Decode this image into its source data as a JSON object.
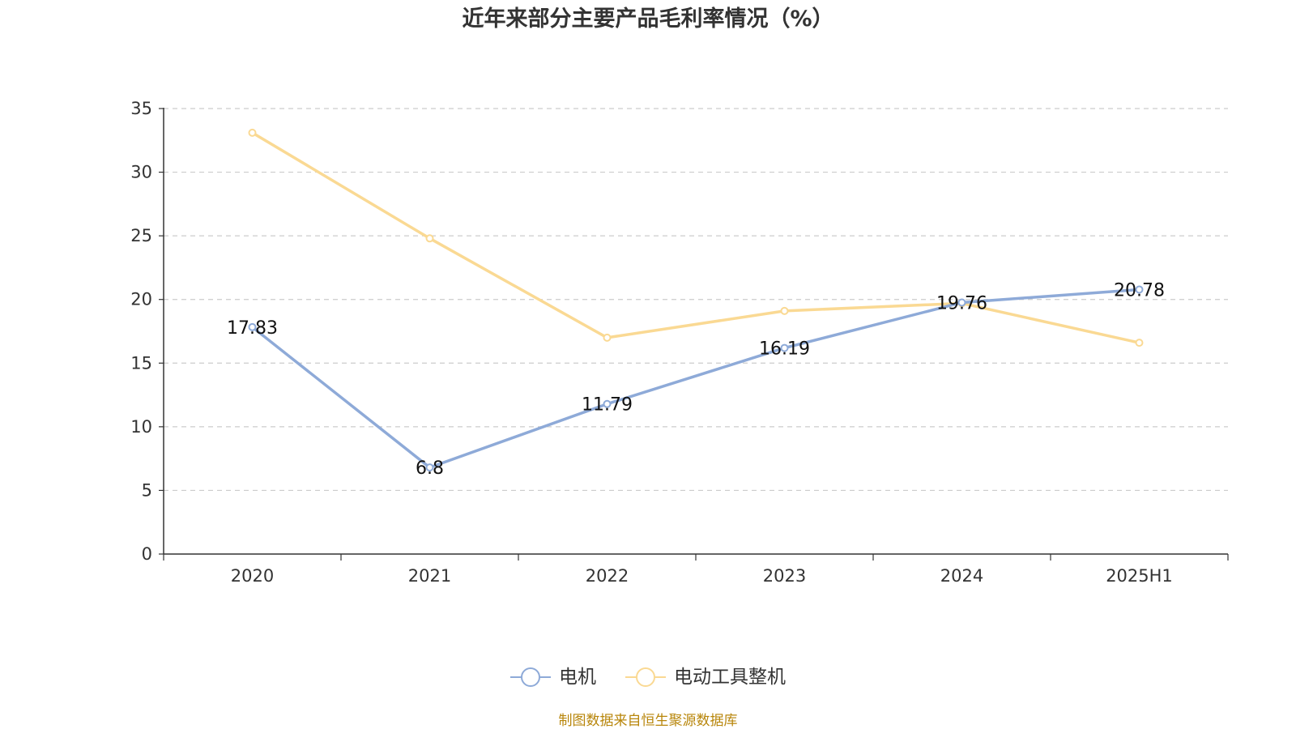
{
  "title": "近年来部分主要产品毛利率情况（%）",
  "source_note": "制图数据来自恒生聚源数据库",
  "colors": {
    "series_motor": "#8eaad8",
    "series_tool": "#fad993",
    "grid": "#cccccc",
    "axis": "#333333",
    "source_text": "#b8860b"
  },
  "chart_data": {
    "type": "line",
    "title": "近年来部分主要产品毛利率情况（%）",
    "xlabel": "",
    "ylabel": "",
    "categories": [
      "2020",
      "2021",
      "2022",
      "2023",
      "2024",
      "2025H1"
    ],
    "ylim": [
      0,
      35
    ],
    "yticks": [
      "0",
      "5",
      "10",
      "15",
      "20",
      "25",
      "30",
      "35"
    ],
    "grid": true,
    "legend_position": "bottom-center",
    "series": [
      {
        "name": "电机",
        "values": [
          17.83,
          6.8,
          11.79,
          16.19,
          19.76,
          20.78
        ],
        "labels": [
          "17.83",
          "6.8",
          "11.79",
          "16.19",
          "19.76",
          "20.78"
        ],
        "show_labels": true
      },
      {
        "name": "电动工具整机",
        "values": [
          33.1,
          24.8,
          17.0,
          19.1,
          19.7,
          16.6
        ],
        "show_labels": false
      }
    ]
  }
}
